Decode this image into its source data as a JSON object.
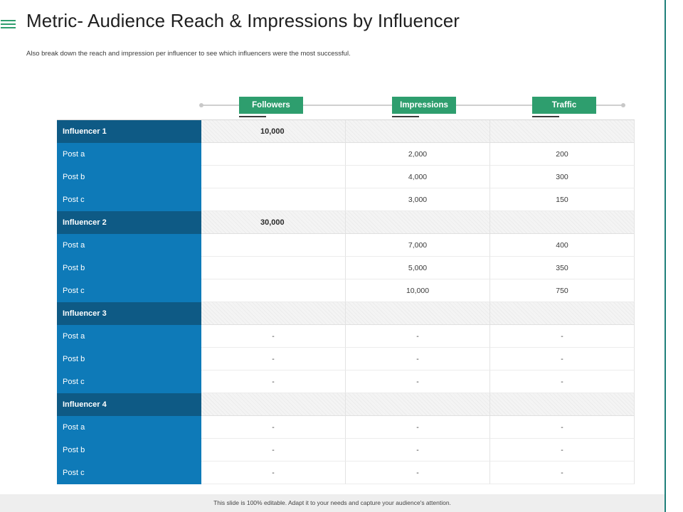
{
  "header": {
    "menu_icon": "hamburger-icon",
    "title": "Metric- Audience Reach & Impressions by Influencer",
    "subtitle": "Also break down the reach and impression per influencer to see which influencers were the most successful."
  },
  "columns": [
    "Followers",
    "Impressions",
    "Traffic"
  ],
  "influencers": [
    {
      "name": "Influencer 1",
      "followers": "10,000",
      "posts": [
        {
          "label": "Post a",
          "followers": "",
          "impressions": "2,000",
          "traffic": "200"
        },
        {
          "label": "Post b",
          "followers": "",
          "impressions": "4,000",
          "traffic": "300"
        },
        {
          "label": "Post c",
          "followers": "",
          "impressions": "3,000",
          "traffic": "150"
        }
      ]
    },
    {
      "name": "Influencer 2",
      "followers": "30,000",
      "posts": [
        {
          "label": "Post a",
          "followers": "",
          "impressions": "7,000",
          "traffic": "400"
        },
        {
          "label": "Post b",
          "followers": "",
          "impressions": "5,000",
          "traffic": "350"
        },
        {
          "label": "Post c",
          "followers": "",
          "impressions": "10,000",
          "traffic": "750"
        }
      ]
    },
    {
      "name": "Influencer 3",
      "followers": "",
      "posts": [
        {
          "label": "Post a",
          "followers": "-",
          "impressions": "-",
          "traffic": "-"
        },
        {
          "label": "Post b",
          "followers": "-",
          "impressions": "-",
          "traffic": "-"
        },
        {
          "label": "Post c",
          "followers": "-",
          "impressions": "-",
          "traffic": "-"
        }
      ]
    },
    {
      "name": "Influencer 4",
      "followers": "",
      "posts": [
        {
          "label": "Post a",
          "followers": "-",
          "impressions": "-",
          "traffic": "-"
        },
        {
          "label": "Post b",
          "followers": "-",
          "impressions": "-",
          "traffic": "-"
        },
        {
          "label": "Post c",
          "followers": "-",
          "impressions": "-",
          "traffic": "-"
        }
      ]
    }
  ],
  "footer": {
    "note": "This slide is 100% editable. Adapt it to your needs and capture your audience's attention."
  },
  "colors": {
    "accent_green": "#2e9e6e",
    "group_blue": "#0e5a85",
    "post_blue": "#0e7ab8",
    "frame_teal": "#1f7f7a"
  }
}
